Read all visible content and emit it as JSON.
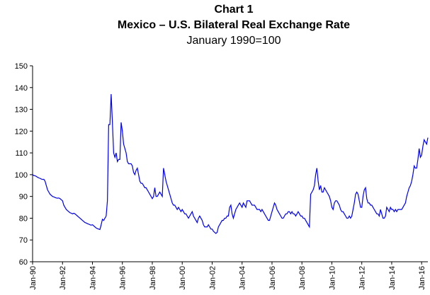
{
  "chart_data": {
    "type": "line",
    "title": "Chart 1",
    "subtitle": "Mexico – U.S. Bilateral Real Exchange Rate",
    "note": "January 1990=100",
    "color": "#0000ee",
    "ylim": [
      60,
      150
    ],
    "yticks": [
      60,
      70,
      80,
      90,
      100,
      110,
      120,
      130,
      140,
      150
    ],
    "categories": [
      "Jan-90",
      null,
      null,
      null,
      null,
      null,
      null,
      null,
      null,
      null,
      null,
      null,
      null,
      null,
      null,
      null,
      null,
      null,
      null,
      null,
      null,
      null,
      null,
      null,
      "Jan-92",
      null,
      null,
      null,
      null,
      null,
      null,
      null,
      null,
      null,
      null,
      null,
      null,
      null,
      null,
      null,
      null,
      null,
      null,
      null,
      null,
      null,
      null,
      null,
      "Jan-94",
      null,
      null,
      null,
      null,
      null,
      null,
      null,
      null,
      null,
      null,
      null,
      null,
      null,
      null,
      null,
      null,
      null,
      null,
      null,
      null,
      null,
      null,
      null,
      "Jan-96",
      null,
      null,
      null,
      null,
      null,
      null,
      null,
      null,
      null,
      null,
      null,
      null,
      null,
      null,
      null,
      null,
      null,
      null,
      null,
      null,
      null,
      null,
      null,
      "Jan-98",
      null,
      null,
      null,
      null,
      null,
      null,
      null,
      null,
      null,
      null,
      null,
      null,
      null,
      null,
      null,
      null,
      null,
      null,
      null,
      null,
      null,
      null,
      null,
      "Jan-00",
      null,
      null,
      null,
      null,
      null,
      null,
      null,
      null,
      null,
      null,
      null,
      null,
      null,
      null,
      null,
      null,
      null,
      null,
      null,
      null,
      null,
      null,
      null,
      "Jan-02",
      null,
      null,
      null,
      null,
      null,
      null,
      null,
      null,
      null,
      null,
      null,
      null,
      null,
      null,
      null,
      null,
      null,
      null,
      null,
      null,
      null,
      null,
      null,
      "Jan-04",
      null,
      null,
      null,
      null,
      null,
      null,
      null,
      null,
      null,
      null,
      null,
      null,
      null,
      null,
      null,
      null,
      null,
      null,
      null,
      null,
      null,
      null,
      null,
      "Jan-06",
      null,
      null,
      null,
      null,
      null,
      null,
      null,
      null,
      null,
      null,
      null,
      null,
      null,
      null,
      null,
      null,
      null,
      null,
      null,
      null,
      null,
      null,
      null,
      "Jan-08",
      null,
      null,
      null,
      null,
      null,
      null,
      null,
      null,
      null,
      null,
      null,
      null,
      null,
      null,
      null,
      null,
      null,
      null,
      null,
      null,
      null,
      null,
      null,
      "Jan-10",
      null,
      null,
      null,
      null,
      null,
      null,
      null,
      null,
      null,
      null,
      null,
      null,
      null,
      null,
      null,
      null,
      null,
      null,
      null,
      null,
      null,
      null,
      null,
      "Jan-12",
      null,
      null,
      null,
      null,
      null,
      null,
      null,
      null,
      null,
      null,
      null,
      null,
      null,
      null,
      null,
      null,
      null,
      null,
      null,
      null,
      null,
      null,
      null,
      "Jan-14",
      null,
      null,
      null,
      null,
      null,
      null,
      null,
      null,
      null,
      null,
      null,
      null,
      null,
      null,
      null,
      null,
      null,
      null,
      null,
      null,
      null,
      null,
      null,
      "Jan-16",
      null,
      null,
      null,
      null,
      null
    ],
    "values": [
      100,
      99.6,
      99.5,
      99.2,
      98.8,
      98.5,
      98.3,
      98,
      97.8,
      97.9,
      97,
      95,
      93,
      92,
      91,
      90.5,
      90,
      89.8,
      89.5,
      89.3,
      89.2,
      89.3,
      89,
      88.5,
      88,
      86,
      85,
      84,
      83.5,
      83,
      82.5,
      82.3,
      82,
      82.3,
      82,
      81.5,
      81,
      80.5,
      80,
      79.5,
      79,
      78.5,
      78,
      77.8,
      77.5,
      77.3,
      77,
      76.8,
      77,
      76.5,
      76,
      75.5,
      75.2,
      75,
      74.8,
      77,
      79.5,
      79,
      80,
      81,
      88,
      123,
      123,
      137,
      124,
      110,
      108,
      110,
      106,
      107,
      107,
      124,
      120,
      114,
      112,
      110,
      106,
      105,
      105,
      105,
      104,
      101,
      100,
      102,
      103,
      100,
      97,
      96,
      96,
      95,
      94,
      94,
      93,
      92,
      91,
      90,
      89,
      90,
      94,
      90,
      90,
      91,
      92,
      91,
      90,
      103,
      100,
      97,
      95,
      93,
      91,
      89,
      87,
      86,
      86,
      85,
      84,
      85,
      84,
      83,
      84,
      83,
      82,
      82,
      81,
      80,
      81,
      82,
      83,
      81,
      80,
      79,
      78,
      80,
      81,
      80,
      79,
      77,
      76,
      76,
      76,
      77,
      76,
      75,
      75,
      74,
      73.5,
      73,
      73.5,
      76,
      77,
      78,
      79,
      79,
      80,
      80,
      81,
      81,
      85,
      86,
      82,
      80,
      82,
      84,
      85,
      86,
      87,
      86,
      85,
      87,
      86,
      85,
      88,
      88,
      88,
      87,
      86,
      86,
      86,
      85,
      84,
      84,
      84,
      83,
      84,
      83,
      82,
      81,
      80,
      79,
      79,
      81,
      83,
      85,
      87,
      86,
      84,
      83,
      82,
      81,
      80,
      80,
      81,
      82,
      82,
      83,
      83,
      82,
      83,
      82,
      82,
      81,
      82,
      83,
      82,
      81,
      81,
      80,
      80,
      79,
      78,
      77,
      76,
      91,
      92,
      93,
      95,
      100,
      103,
      97,
      93,
      95,
      92,
      92,
      94,
      93,
      92,
      91,
      90,
      88,
      85,
      84,
      87,
      88,
      88,
      87,
      86,
      84,
      83,
      83,
      82,
      81,
      80,
      80,
      81,
      80,
      81,
      84,
      87,
      91,
      92,
      91,
      88,
      85,
      85,
      90,
      93,
      94,
      89,
      87,
      87,
      86,
      86,
      85,
      84,
      83,
      82,
      82,
      81,
      84,
      82,
      80,
      80,
      81,
      85,
      84,
      83,
      85,
      84,
      84,
      83,
      84,
      83,
      84,
      84,
      84,
      84,
      85,
      86,
      87,
      90,
      92,
      94,
      95,
      97,
      100,
      104,
      103,
      103,
      107,
      112,
      108,
      109,
      113,
      116,
      115,
      114,
      117
    ]
  }
}
